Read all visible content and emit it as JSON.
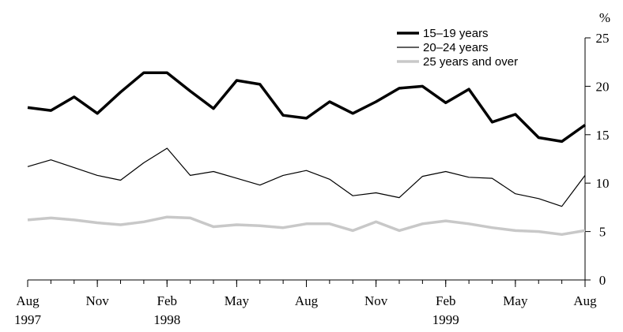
{
  "chart_data": {
    "type": "line",
    "title": "",
    "xlabel": "",
    "ylabel": "%",
    "ylim": [
      0,
      25
    ],
    "y_ticks": [
      0,
      5,
      10,
      15,
      20,
      25
    ],
    "y_axis_side": "right",
    "x": [
      "Aug 1997",
      "Sep 1997",
      "Oct 1997",
      "Nov 1997",
      "Dec 1997",
      "Jan 1998",
      "Feb 1998",
      "Mar 1998",
      "Apr 1998",
      "May 1998",
      "Jun 1998",
      "Jul 1998",
      "Aug 1998",
      "Sep 1998",
      "Oct 1998",
      "Nov 1998",
      "Dec 1998",
      "Jan 1999",
      "Feb 1999",
      "Mar 1999",
      "Apr 1999",
      "May 1999",
      "Jun 1999",
      "Jul 1999",
      "Aug 1999"
    ],
    "x_tick_labels": [
      {
        "index": 0,
        "month": "Aug",
        "year": "1997"
      },
      {
        "index": 3,
        "month": "Nov",
        "year": ""
      },
      {
        "index": 6,
        "month": "Feb",
        "year": "1998"
      },
      {
        "index": 9,
        "month": "May",
        "year": ""
      },
      {
        "index": 12,
        "month": "Aug",
        "year": ""
      },
      {
        "index": 15,
        "month": "Nov",
        "year": ""
      },
      {
        "index": 18,
        "month": "Feb",
        "year": "1999"
      },
      {
        "index": 21,
        "month": "May",
        "year": ""
      },
      {
        "index": 24,
        "month": "Aug",
        "year": ""
      }
    ],
    "legend_position": "top-right",
    "grid": false,
    "series": [
      {
        "name": "15–19 years",
        "color": "#000000",
        "style": "thick",
        "values": [
          17.8,
          17.5,
          18.9,
          17.2,
          19.4,
          21.4,
          21.4,
          19.5,
          17.7,
          20.6,
          20.2,
          17.0,
          16.7,
          18.4,
          17.2,
          18.4,
          19.8,
          20.0,
          18.3,
          19.7,
          16.3,
          17.1,
          14.7,
          14.3,
          16.0
        ]
      },
      {
        "name": "20–24 years",
        "color": "#000000",
        "style": "thin",
        "values": [
          11.7,
          12.4,
          11.6,
          10.8,
          10.3,
          12.1,
          13.6,
          10.8,
          11.2,
          10.5,
          9.8,
          10.8,
          11.3,
          10.4,
          8.7,
          9.0,
          8.5,
          10.7,
          11.2,
          10.6,
          10.5,
          8.9,
          8.4,
          7.6,
          10.8
        ]
      },
      {
        "name": "25 years and over",
        "color": "#c8c8c8",
        "style": "thick",
        "values": [
          6.2,
          6.4,
          6.2,
          5.9,
          5.7,
          6.0,
          6.5,
          6.4,
          5.5,
          5.7,
          5.6,
          5.4,
          5.8,
          5.8,
          5.1,
          6.0,
          5.1,
          5.8,
          6.1,
          5.8,
          5.4,
          5.1,
          5.0,
          4.7,
          5.1
        ]
      }
    ]
  }
}
